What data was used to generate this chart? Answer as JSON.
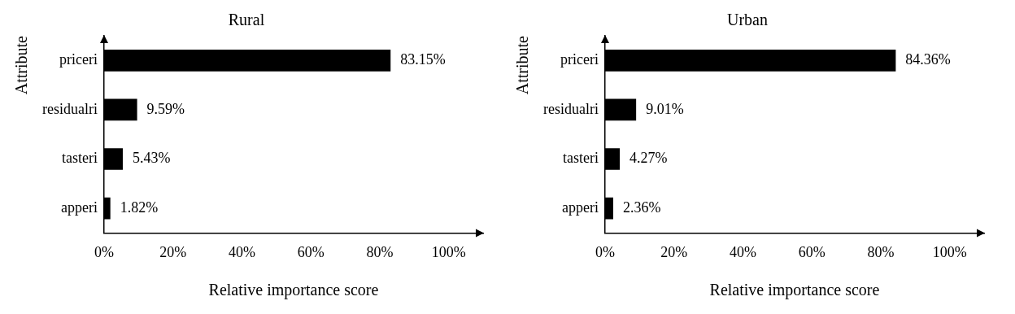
{
  "chart_data": [
    {
      "type": "bar",
      "orientation": "horizontal",
      "title": "Rural",
      "xlabel": "Relative importance score",
      "ylabel": "Attribute",
      "categories": [
        "priceri",
        "residualri",
        "tasteri",
        "apperi"
      ],
      "values": [
        83.15,
        9.59,
        5.43,
        1.82
      ],
      "value_labels": [
        "83.15%",
        "9.59%",
        "5.43%",
        "1.82%"
      ],
      "color": "#000000",
      "xlim": [
        0,
        110
      ],
      "xticks": [
        {
          "value": 0,
          "label": "0%"
        },
        {
          "value": 20,
          "label": "20%"
        },
        {
          "value": 40,
          "label": "40%"
        },
        {
          "value": 60,
          "label": "60%"
        },
        {
          "value": 80,
          "label": "80%"
        },
        {
          "value": 100,
          "label": "100%"
        }
      ],
      "grid": false,
      "legend": false
    },
    {
      "type": "bar",
      "orientation": "horizontal",
      "title": "Urban",
      "xlabel": "Relative importance score",
      "ylabel": "Attribute",
      "categories": [
        "priceri",
        "residualri",
        "tasteri",
        "apperi"
      ],
      "values": [
        84.36,
        9.01,
        4.27,
        2.36
      ],
      "value_labels": [
        "84.36%",
        "9.01%",
        "4.27%",
        "2.36%"
      ],
      "color": "#000000",
      "xlim": [
        0,
        110
      ],
      "xticks": [
        {
          "value": 0,
          "label": "0%"
        },
        {
          "value": 20,
          "label": "20%"
        },
        {
          "value": 40,
          "label": "40%"
        },
        {
          "value": 60,
          "label": "60%"
        },
        {
          "value": 80,
          "label": "80%"
        },
        {
          "value": 100,
          "label": "100%"
        }
      ],
      "grid": false,
      "legend": false
    }
  ]
}
